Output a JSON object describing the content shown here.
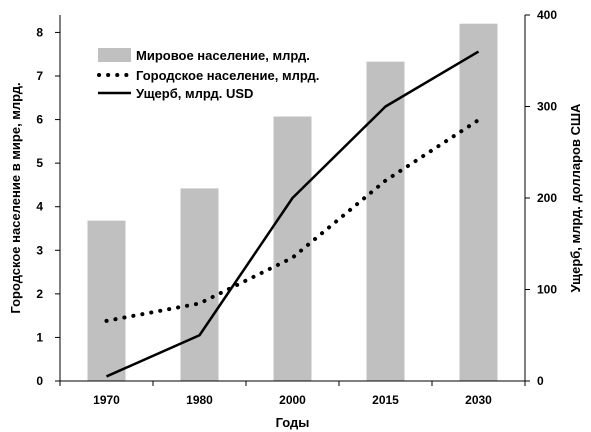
{
  "chart_data": {
    "type": "bar+line",
    "categories": [
      "1970",
      "1980",
      "2000",
      "2015",
      "2030"
    ],
    "xlabel": "Годы",
    "ylabel_left": "Городское население в мире, млрд.",
    "ylabel_right": "Ущерб, млрд. долларов США",
    "ylim_left": [
      0,
      8.4
    ],
    "yticks_left": [
      0,
      1,
      2,
      3,
      4,
      5,
      6,
      7,
      8
    ],
    "ylim_right": [
      0,
      400
    ],
    "yticks_right": [
      0,
      100,
      200,
      300,
      400
    ],
    "grid": false,
    "legend_position": "top-left",
    "series": [
      {
        "name": "Мировое население, млрд.",
        "type": "bar",
        "axis": "left",
        "color": "#c0c0c0",
        "values": [
          3.68,
          4.42,
          6.07,
          7.33,
          8.2
        ]
      },
      {
        "name": "Городское население, млрд.",
        "type": "line",
        "style": "dotted",
        "axis": "left",
        "color": "#000000",
        "values": [
          1.38,
          1.78,
          2.83,
          4.6,
          5.99
        ]
      },
      {
        "name": "Ущерб, млрд. USD",
        "type": "line",
        "style": "solid",
        "axis": "right",
        "color": "#000000",
        "values": [
          5,
          50,
          200,
          300,
          360
        ]
      }
    ]
  }
}
